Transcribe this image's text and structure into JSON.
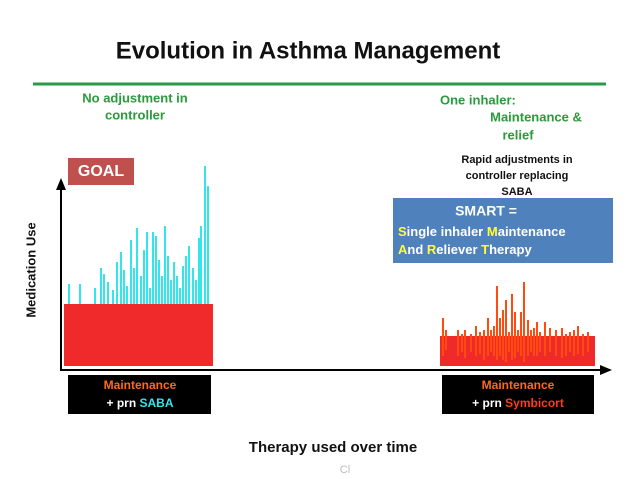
{
  "header": {
    "title": "Evolution in Asthma Management"
  },
  "left_note": {
    "lines": [
      "No adjustment in",
      "controller"
    ]
  },
  "right_note": {
    "lines": [
      "One inhaler:",
      "Maintenance &",
      "relief"
    ]
  },
  "goal": "GOAL",
  "rapid_note": {
    "lines": [
      "Rapid adjustments in",
      "controller replacing",
      "SABA"
    ]
  },
  "smart_box": {
    "title": "SMART =",
    "line1": [
      "S",
      "ingle inhaler",
      "M",
      "aintenance"
    ],
    "line2": [
      "A",
      "nd",
      "R",
      "eliever",
      "T",
      "herapy"
    ]
  },
  "y_axis_label": "Medication Use",
  "x_axis_label": "Therapy used over time",
  "left_box": {
    "line1": "Maintenance",
    "prefix": "+ prn",
    "drug": "SABA"
  },
  "right_box": {
    "line1": "Maintenance",
    "prefix": "+ prn",
    "drug": "Symbicort"
  },
  "footer": "Cl"
}
